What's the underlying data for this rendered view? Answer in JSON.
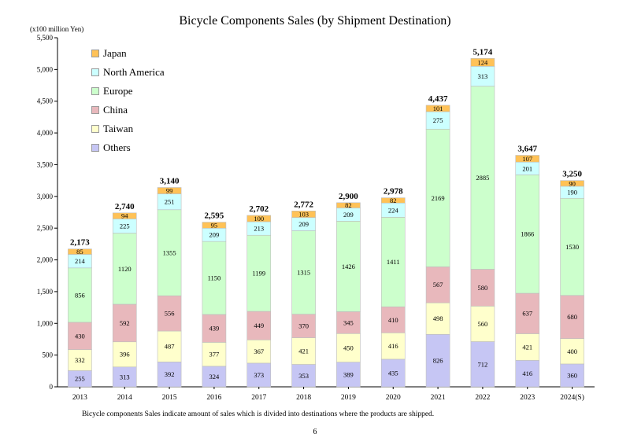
{
  "chart_data": {
    "type": "bar",
    "stacked": true,
    "title": "Bicycle Components Sales (by Shipment Destination)",
    "unit": "(x100 million Yen)",
    "categories": [
      "2013",
      "2014",
      "2015",
      "2016",
      "2017",
      "2018",
      "2019",
      "2020",
      "2021",
      "2022",
      "2023",
      "2024(S)"
    ],
    "series": [
      {
        "name": "Others",
        "color": "#c6c6f4",
        "values": [
          255,
          313,
          392,
          324,
          373,
          353,
          389,
          435,
          826,
          712,
          416,
          360
        ]
      },
      {
        "name": "Taiwan",
        "color": "#ffffcc",
        "values": [
          332,
          396,
          487,
          377,
          367,
          421,
          450,
          416,
          498,
          560,
          421,
          400
        ]
      },
      {
        "name": "China",
        "color": "#e8b8bc",
        "values": [
          430,
          592,
          556,
          439,
          449,
          370,
          345,
          410,
          567,
          580,
          637,
          680
        ]
      },
      {
        "name": "Europe",
        "color": "#ccffcc",
        "values": [
          856,
          1120,
          1355,
          1150,
          1199,
          1315,
          1426,
          1411,
          2169,
          2885,
          1866,
          1530
        ]
      },
      {
        "name": "North America",
        "color": "#ccffff",
        "values": [
          214,
          225,
          251,
          209,
          213,
          209,
          209,
          224,
          275,
          313,
          201,
          190
        ]
      },
      {
        "name": "Japan",
        "color": "#ffc257",
        "values": [
          85,
          94,
          99,
          95,
          100,
          103,
          82,
          82,
          101,
          124,
          107,
          90
        ]
      }
    ],
    "totals": [
      "2,173",
      "2,740",
      "3,140",
      "2,595",
      "2,702",
      "2,772",
      "2,900",
      "2,978",
      "4,437",
      "5,174",
      "3,647",
      "3,250"
    ],
    "yticks": [
      "0",
      "500",
      "1,000",
      "1,500",
      "2,000",
      "2,500",
      "3,000",
      "3,500",
      "4,000",
      "4,500",
      "5,000",
      "5,500"
    ],
    "ylim": [
      0,
      5500
    ],
    "grid": false,
    "legend_position": "top-left"
  },
  "footnote": "Bicycle components Sales indicate amount of sales which is divided into destinations where the products are shipped.",
  "page_number": "6"
}
